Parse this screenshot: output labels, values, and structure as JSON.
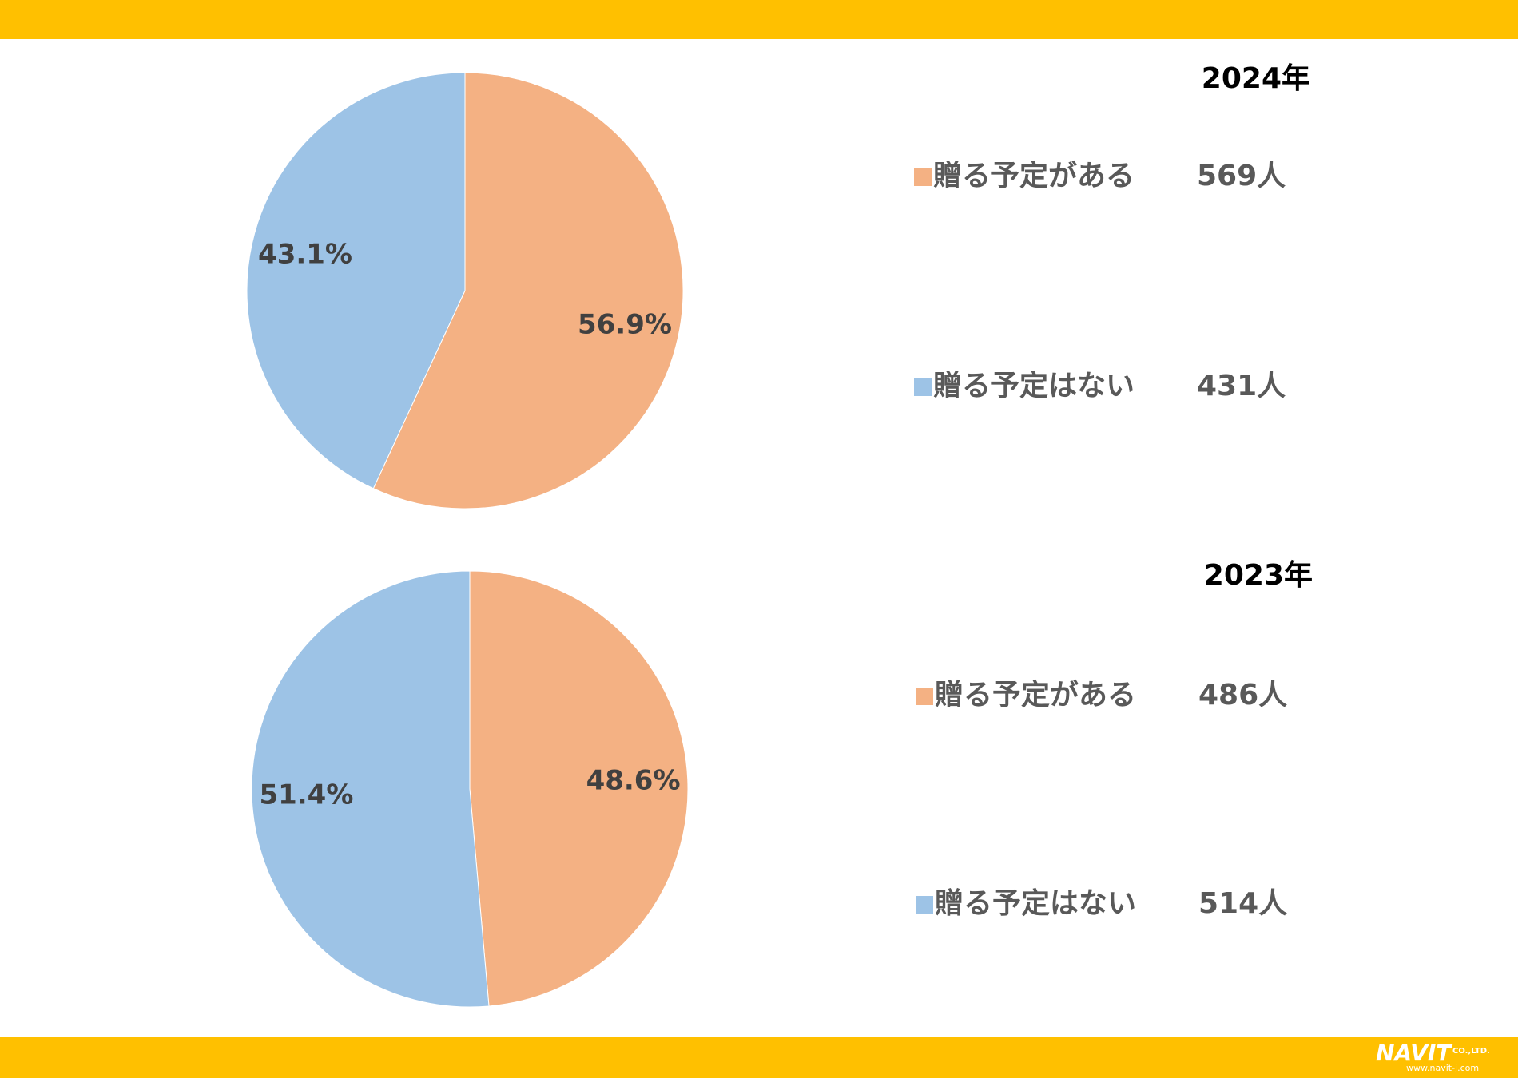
{
  "chart_data": [
    {
      "type": "pie",
      "title": "2024年",
      "categories": [
        "贈る予定がある",
        "贈る予定はない"
      ],
      "values": [
        56.9,
        43.1
      ],
      "value_labels": [
        "56.9%",
        "43.1%"
      ],
      "count_labels": [
        "569人",
        "431人"
      ],
      "colors": [
        "#F4B183",
        "#9DC3E6"
      ]
    },
    {
      "type": "pie",
      "title": "2023年",
      "categories": [
        "贈る予定がある",
        "贈る予定はない"
      ],
      "values": [
        48.6,
        51.4
      ],
      "value_labels": [
        "48.6%",
        "51.4%"
      ],
      "count_labels": [
        "486人",
        "514人"
      ],
      "colors": [
        "#F4B183",
        "#9DC3E6"
      ]
    }
  ],
  "footer": {
    "logo": "NAVIT",
    "company": "CO.,LTD.",
    "url": "www.navit-j.com"
  }
}
